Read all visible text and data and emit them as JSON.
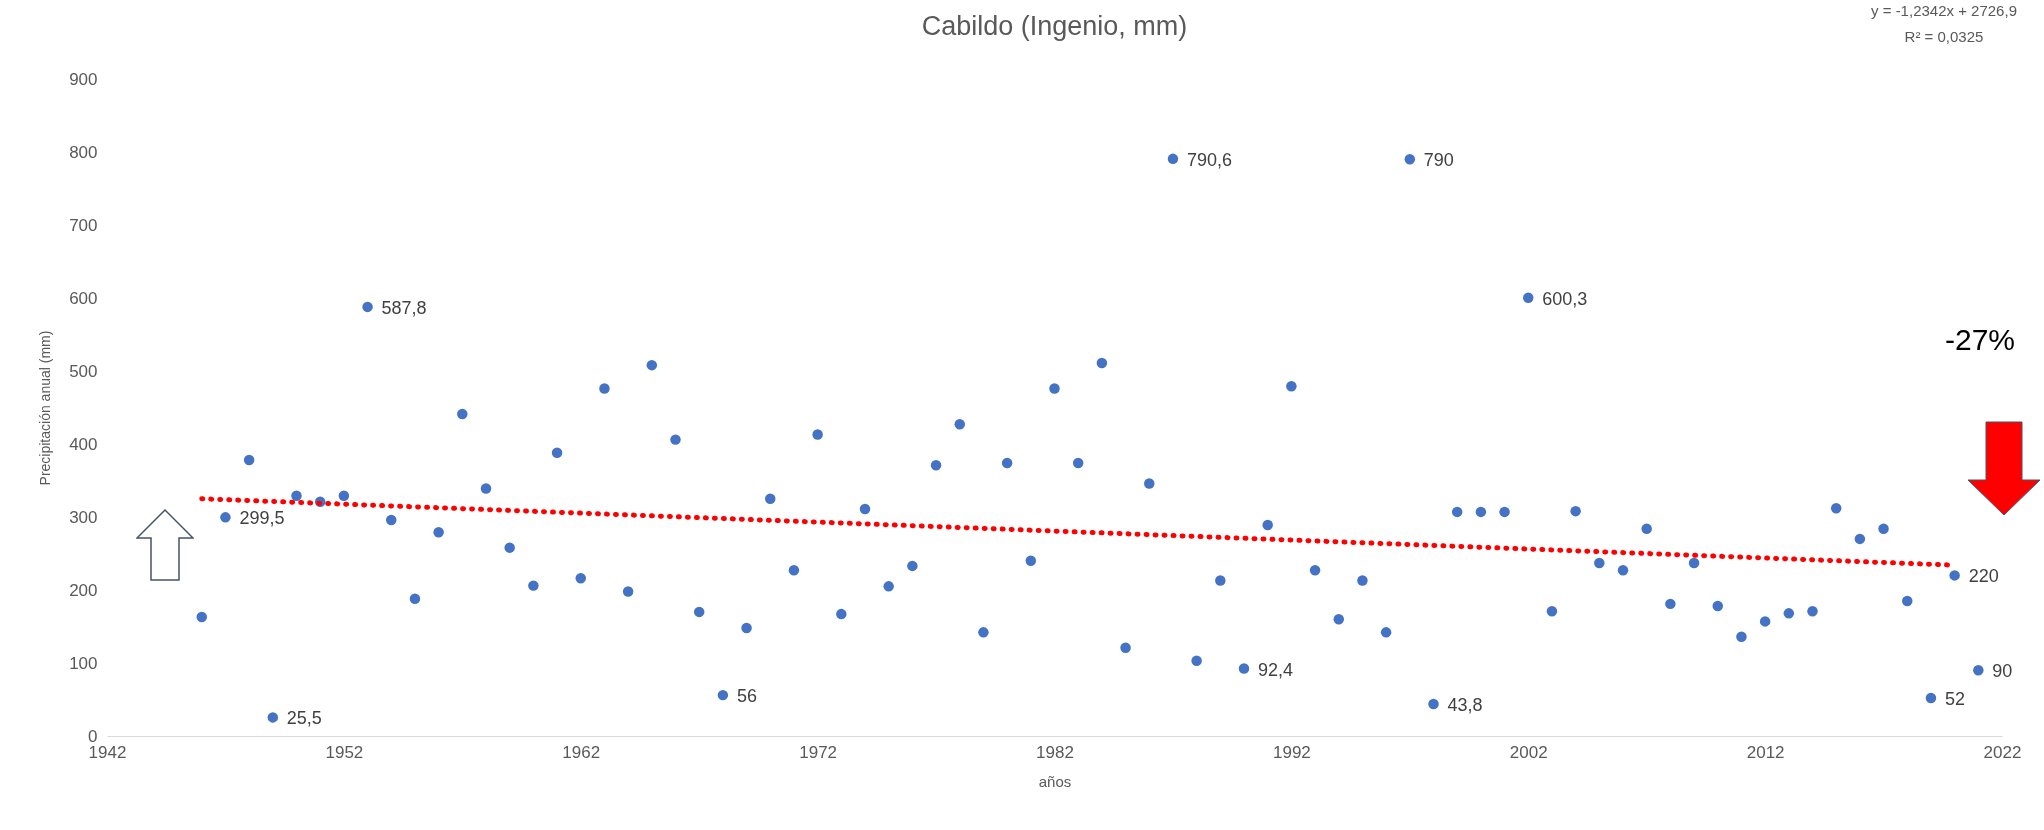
{
  "chart_data": {
    "type": "scatter",
    "title": "Cabildo (Ingenio, mm)",
    "xlabel": "años",
    "ylabel": "Precipitación anual (mm)",
    "x": [
      1946,
      1947,
      1948,
      1949,
      1950,
      1951,
      1952,
      1953,
      1954,
      1955,
      1956,
      1957,
      1958,
      1959,
      1960,
      1961,
      1962,
      1963,
      1964,
      1965,
      1966,
      1967,
      1968,
      1969,
      1970,
      1971,
      1972,
      1973,
      1974,
      1975,
      1976,
      1977,
      1978,
      1979,
      1980,
      1981,
      1982,
      1983,
      1984,
      1985,
      1986,
      1987,
      1988,
      1989,
      1990,
      1991,
      1992,
      1993,
      1994,
      1995,
      1996,
      1997,
      1998,
      1999,
      2000,
      2001,
      2002,
      2003,
      2004,
      2005,
      2006,
      2007,
      2008,
      2009,
      2010,
      2011,
      2012,
      2013,
      2014,
      2015,
      2016,
      2017,
      2018,
      2019,
      2020,
      2021
    ],
    "series": [
      {
        "marker": "circle",
        "color": "#4472c4",
        "values": [
          163,
          299.5,
          378,
          25.5,
          329,
          321,
          329,
          587.8,
          296,
          188,
          279,
          441,
          339,
          258,
          206,
          388,
          216,
          476,
          198,
          508,
          406,
          170,
          56,
          148,
          325,
          227,
          413,
          167,
          311,
          205,
          233,
          371,
          427,
          142,
          374,
          240,
          476,
          374,
          511,
          121,
          346,
          790.6,
          103,
          213,
          92.4,
          289,
          479,
          227,
          160,
          213,
          142,
          790,
          43.8,
          307,
          307,
          307,
          600.3,
          171,
          308,
          237,
          227,
          284,
          181,
          237,
          178,
          136,
          157,
          168,
          171,
          312,
          270,
          284,
          185,
          52,
          220,
          90
        ],
        "value_labels": [
          null,
          "299,5",
          null,
          "25,5",
          null,
          null,
          null,
          "587,8",
          null,
          null,
          null,
          null,
          null,
          null,
          null,
          null,
          null,
          null,
          null,
          null,
          null,
          null,
          "56",
          null,
          null,
          null,
          null,
          null,
          null,
          null,
          null,
          null,
          null,
          null,
          null,
          null,
          null,
          null,
          null,
          null,
          null,
          "790,6",
          null,
          null,
          "92,4",
          null,
          null,
          null,
          null,
          null,
          null,
          "790",
          "43,8",
          null,
          null,
          null,
          "600,3",
          null,
          null,
          null,
          null,
          null,
          null,
          null,
          null,
          null,
          null,
          null,
          null,
          null,
          null,
          null,
          null,
          "52",
          "220",
          "90"
        ]
      },
      {
        "type": "line",
        "x": [
          1946,
          2020
        ],
        "values": [
          325,
          234
        ],
        "color": "#ff0000",
        "line_style": "dotted"
      }
    ],
    "xlim": [
      1942,
      2022
    ],
    "xticks": [
      1942,
      1952,
      1962,
      1972,
      1982,
      1992,
      2002,
      2012,
      2022
    ],
    "ylim": [
      0,
      900
    ],
    "yticks": [
      0,
      100,
      200,
      300,
      400,
      500,
      600,
      700,
      800,
      900
    ],
    "annotations": [
      "y = -1,2342x + 2726,9",
      "R² = 0,0325",
      "-27%"
    ]
  }
}
